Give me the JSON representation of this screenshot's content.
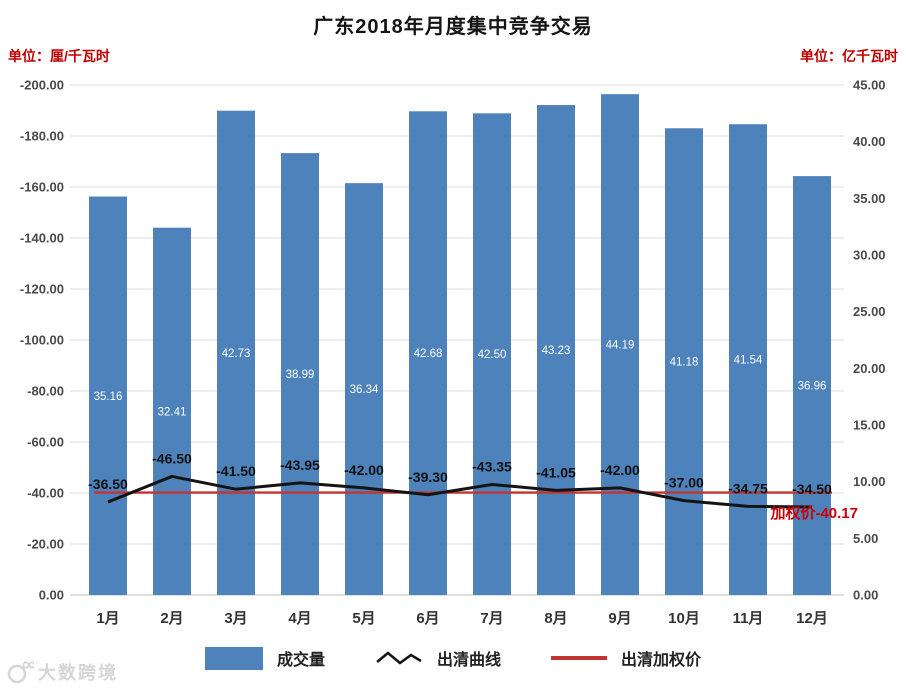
{
  "title": "广东2018年月度集中竞争交易",
  "axis_units": {
    "left": "单位：厘/千瓦时",
    "right": "单位：亿千瓦时"
  },
  "weighted_price_label": "加权价-40.17",
  "watermark": "大数跨境",
  "colors": {
    "bar": "#4d82ba",
    "curve": "#141414",
    "weighted_line": "#c23432",
    "weighted_text": "#cc0000",
    "unit_text": "#c00000",
    "grid": "#dedede",
    "axis_line": "#bfbfbf"
  },
  "legend": [
    {
      "label": "成交量",
      "swatch": "bar"
    },
    {
      "label": "出清曲线",
      "swatch": "line"
    },
    {
      "label": "出清加权价",
      "swatch": "hline"
    }
  ],
  "chart_data": {
    "type": "bar",
    "title": "广东2018年月度集中竞争交易",
    "categories": [
      "1月",
      "2月",
      "3月",
      "4月",
      "5月",
      "6月",
      "7月",
      "8月",
      "9月",
      "10月",
      "11月",
      "12月"
    ],
    "series": [
      {
        "name": "成交量",
        "type": "bar",
        "axis": "right",
        "values": [
          35.16,
          32.41,
          42.73,
          38.99,
          36.34,
          42.68,
          42.5,
          43.23,
          44.19,
          41.18,
          41.54,
          36.96
        ]
      },
      {
        "name": "出清曲线",
        "type": "line",
        "axis": "left",
        "values": [
          -36.5,
          -46.5,
          -41.5,
          -43.95,
          -42.0,
          -39.3,
          -43.35,
          -41.05,
          -42.0,
          -37.0,
          -34.75,
          -34.5
        ]
      },
      {
        "name": "出清加权价",
        "type": "hline",
        "axis": "left",
        "value": -40.17
      }
    ],
    "left_axis": {
      "unit": "厘/千瓦时",
      "min": -200,
      "max": 0,
      "ticks": [
        "-200.00",
        "-180.00",
        "-160.00",
        "-140.00",
        "-120.00",
        "-100.00",
        "-80.00",
        "-60.00",
        "-40.00",
        "-20.00",
        "0.00"
      ]
    },
    "right_axis": {
      "unit": "亿千瓦时",
      "min": 0,
      "max": 45,
      "ticks": [
        "45.00",
        "40.00",
        "35.00",
        "30.00",
        "25.00",
        "20.00",
        "15.00",
        "10.00",
        "5.00",
        "0.00"
      ]
    },
    "grid": true,
    "legend_position": "bottom"
  }
}
